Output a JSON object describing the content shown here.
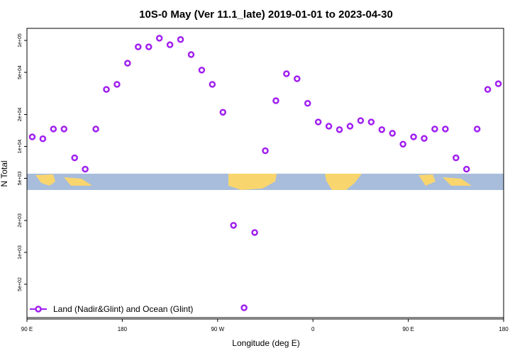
{
  "chart_data": {
    "type": "scatter",
    "title": "10S-0 May (Ver 11.1_late)   2019-01-01 to 2023-04-30",
    "x_label": "Longitude (deg E)",
    "y_label": "N Total",
    "log_y": true,
    "xlim": [
      90,
      540
    ],
    "xticks": [
      {
        "value": 90,
        "label": "90 E"
      },
      180,
      {
        "value": 270,
        "label": "90 W"
      },
      {
        "value": 360,
        "label": "0"
      },
      {
        "value": 450,
        "label": "90 E"
      },
      {
        "value": 540,
        "label": "180"
      }
    ],
    "ylim": [
      235,
      130000
    ],
    "yticks": [
      {
        "value": 500,
        "label": "5e+02"
      },
      {
        "value": 1000,
        "label": "1e+03"
      },
      {
        "value": 2000,
        "label": "2e+03"
      },
      {
        "value": 5000,
        "label": "5e+03"
      },
      {
        "value": 10000,
        "label": "1e+04"
      },
      {
        "value": 20000,
        "label": "2e+04"
      },
      {
        "value": 50000,
        "label": "5e+04"
      },
      {
        "value": 100000,
        "label": "1e+05"
      }
    ],
    "legend": "bottom-left",
    "series": [
      {
        "name": "Land (Nadir&Glint) and Ocean (Glint)",
        "color": "#a020f0",
        "x": [
          95,
          105,
          115,
          125,
          135,
          145,
          155,
          165,
          175,
          185,
          195,
          205,
          215,
          225,
          235,
          245,
          255,
          265,
          275,
          285,
          295,
          305,
          315,
          325,
          335,
          345,
          355,
          365,
          375,
          385,
          395,
          405,
          415,
          425,
          435,
          445,
          455,
          465,
          475,
          485,
          495,
          505,
          515,
          525,
          535
        ],
        "values": [
          12300,
          11800,
          14600,
          14600,
          7800,
          6100,
          14600,
          34500,
          38500,
          61000,
          87000,
          87000,
          105000,
          91000,
          102000,
          73500,
          52500,
          38500,
          21000,
          1800,
          300,
          1540,
          9100,
          27000,
          48500,
          43500,
          25500,
          17000,
          15500,
          14400,
          15500,
          17500,
          17000,
          14400,
          13300,
          10500,
          12300,
          11900,
          14600,
          14600,
          7800,
          6100,
          14600,
          34500,
          39000
        ]
      }
    ]
  }
}
